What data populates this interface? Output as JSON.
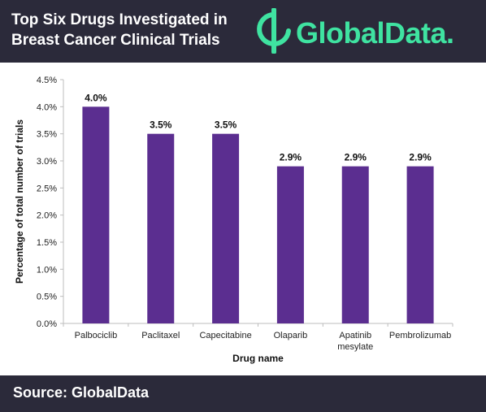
{
  "header": {
    "title_line1": "Top Six Drugs Investigated in",
    "title_line2": "Breast Cancer Clinical Trials",
    "logo_text": "GlobalData."
  },
  "footer": {
    "source": "Source: GlobalData"
  },
  "colors": {
    "header_bg": "#2b2a3a",
    "logo_green": "#3fe3a1",
    "bar": "#5b2e90"
  },
  "chart_data": {
    "type": "bar",
    "categories": [
      "Palbociclib",
      "Paclitaxel",
      "Capecitabine",
      "Olaparib",
      "Apatinib mesylate",
      "Pembrolizumab"
    ],
    "values": [
      4.0,
      3.5,
      3.5,
      2.9,
      2.9,
      2.9
    ],
    "data_labels": [
      "4.0%",
      "3.5%",
      "3.5%",
      "2.9%",
      "2.9%",
      "2.9%"
    ],
    "xlabel": "Drug name",
    "ylabel": "Percentage of total number of trials",
    "ylim": [
      0,
      4.5
    ],
    "yticks": [
      "0.0%",
      "0.5%",
      "1.0%",
      "1.5%",
      "2.0%",
      "2.5%",
      "3.0%",
      "3.5%",
      "4.0%",
      "4.5%"
    ],
    "grid": false,
    "legend": "none"
  }
}
